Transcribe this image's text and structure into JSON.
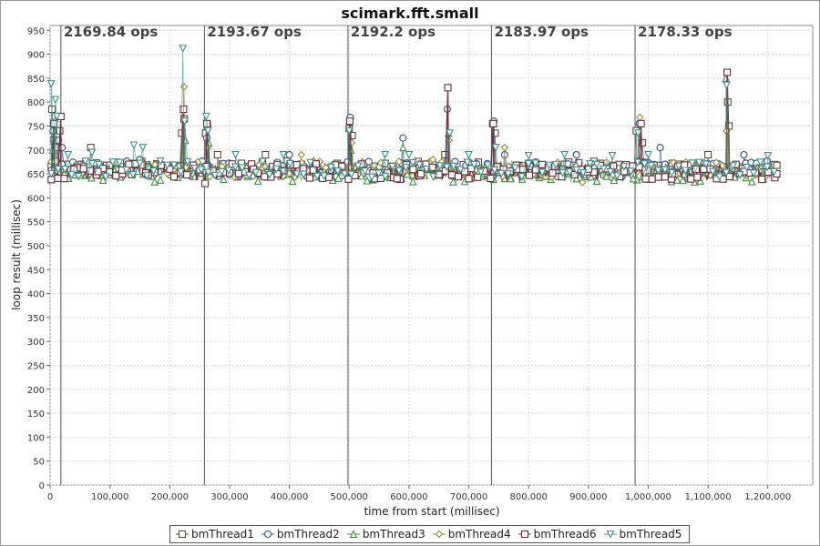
{
  "chart_data": {
    "type": "scatter",
    "title": "scimark.fft.small",
    "xlabel": "time from start (millisec)",
    "ylabel": "loop result (millisec)",
    "xlim": [
      0,
      1275000
    ],
    "ylim": [
      0,
      960
    ],
    "x_ticks": [
      0,
      100000,
      200000,
      300000,
      400000,
      500000,
      600000,
      700000,
      800000,
      900000,
      1000000,
      1100000,
      1200000
    ],
    "x_tick_labels": [
      "0",
      "100,000",
      "200,000",
      "300,000",
      "400,000",
      "500,000",
      "600,000",
      "700,000",
      "800,000",
      "900,000",
      "1,000,000",
      "1,100,000",
      "1,200,000"
    ],
    "y_ticks": [
      0,
      50,
      100,
      150,
      200,
      250,
      300,
      350,
      400,
      450,
      500,
      550,
      600,
      650,
      700,
      750,
      800,
      850,
      900,
      950
    ],
    "grid": true,
    "legend_position": "bottom",
    "iteration_markers": [
      {
        "x": 18000,
        "label": "2169.84 ops"
      },
      {
        "x": 258000,
        "label": "2193.67 ops"
      },
      {
        "x": 498000,
        "label": "2192.2 ops"
      },
      {
        "x": 738000,
        "label": "2183.97 ops"
      },
      {
        "x": 978000,
        "label": "2178.33 ops"
      }
    ],
    "series": [
      {
        "name": "bmThread1",
        "marker": "square",
        "color": "#5a4a3a",
        "points": [
          [
            3000,
            785
          ],
          [
            7000,
            720
          ],
          [
            12000,
            705
          ],
          [
            16000,
            740
          ],
          [
            30000,
            670
          ],
          [
            60000,
            672
          ],
          [
            68000,
            705
          ],
          [
            100000,
            668
          ],
          [
            140000,
            672
          ],
          [
            180000,
            670
          ],
          [
            220000,
            735
          ],
          [
            224000,
            765
          ],
          [
            260000,
            735
          ],
          [
            263000,
            750
          ],
          [
            280000,
            690
          ],
          [
            320000,
            672
          ],
          [
            360000,
            690
          ],
          [
            420000,
            670
          ],
          [
            480000,
            672
          ],
          [
            500000,
            745
          ],
          [
            505000,
            730
          ],
          [
            560000,
            672
          ],
          [
            620000,
            670
          ],
          [
            660000,
            690
          ],
          [
            700000,
            672
          ],
          [
            740000,
            755
          ],
          [
            744000,
            735
          ],
          [
            800000,
            672
          ],
          [
            860000,
            670
          ],
          [
            920000,
            672
          ],
          [
            980000,
            740
          ],
          [
            990000,
            715
          ],
          [
            1040000,
            672
          ],
          [
            1100000,
            690
          ],
          [
            1133000,
            800
          ],
          [
            1135000,
            750
          ],
          [
            1180000,
            670
          ],
          [
            1215000,
            668
          ]
        ]
      },
      {
        "name": "bmThread2",
        "marker": "circle",
        "color": "#2f4f8f",
        "points": [
          [
            5000,
            740
          ],
          [
            14000,
            720
          ],
          [
            20000,
            705
          ],
          [
            40000,
            648
          ],
          [
            80000,
            650
          ],
          [
            120000,
            645
          ],
          [
            150000,
            680
          ],
          [
            200000,
            648
          ],
          [
            240000,
            650
          ],
          [
            262000,
            725
          ],
          [
            300000,
            648
          ],
          [
            350000,
            650
          ],
          [
            400000,
            690
          ],
          [
            440000,
            648
          ],
          [
            502000,
            768
          ],
          [
            540000,
            650
          ],
          [
            590000,
            725
          ],
          [
            620000,
            648
          ],
          [
            664000,
            785
          ],
          [
            700000,
            650
          ],
          [
            742000,
            760
          ],
          [
            760000,
            690
          ],
          [
            820000,
            648
          ],
          [
            880000,
            690
          ],
          [
            950000,
            650
          ],
          [
            985000,
            755
          ],
          [
            1020000,
            705
          ],
          [
            1060000,
            648
          ],
          [
            1120000,
            648
          ],
          [
            1160000,
            690
          ],
          [
            1200000,
            650
          ]
        ]
      },
      {
        "name": "bmThread3",
        "marker": "triangle",
        "color": "#3f8f3f",
        "points": [
          [
            4000,
            700
          ],
          [
            22000,
            650
          ],
          [
            60000,
            648
          ],
          [
            110000,
            650
          ],
          [
            170000,
            645
          ],
          [
            226000,
            720
          ],
          [
            265000,
            715
          ],
          [
            330000,
            645
          ],
          [
            390000,
            648
          ],
          [
            450000,
            650
          ],
          [
            503000,
            700
          ],
          [
            560000,
            645
          ],
          [
            590000,
            705
          ],
          [
            650000,
            648
          ],
          [
            666000,
            735
          ],
          [
            720000,
            645
          ],
          [
            770000,
            640
          ],
          [
            830000,
            645
          ],
          [
            880000,
            640
          ],
          [
            930000,
            645
          ],
          [
            975000,
            640
          ],
          [
            1130000,
            850
          ],
          [
            1190000,
            645
          ]
        ]
      },
      {
        "name": "bmThread4",
        "marker": "diamond",
        "color": "#8f8f2f",
        "points": [
          [
            8000,
            760
          ],
          [
            24000,
            648
          ],
          [
            90000,
            650
          ],
          [
            224000,
            832
          ],
          [
            264000,
            705
          ],
          [
            340000,
            645
          ],
          [
            420000,
            690
          ],
          [
            504000,
            715
          ],
          [
            570000,
            645
          ],
          [
            640000,
            680
          ],
          [
            667000,
            720
          ],
          [
            760000,
            705
          ],
          [
            820000,
            648
          ],
          [
            890000,
            632
          ],
          [
            940000,
            648
          ],
          [
            986000,
            768
          ],
          [
            1040000,
            648
          ],
          [
            1131000,
            740
          ],
          [
            1180000,
            648
          ]
        ]
      },
      {
        "name": "bmThread6",
        "marker": "square",
        "color": "#6a2a3a",
        "points": [
          [
            6000,
            755
          ],
          [
            18000,
            770
          ],
          [
            40000,
            660
          ],
          [
            80000,
            655
          ],
          [
            120000,
            658
          ],
          [
            160000,
            652
          ],
          [
            200000,
            660
          ],
          [
            223000,
            785
          ],
          [
            259000,
            630
          ],
          [
            262000,
            755
          ],
          [
            300000,
            652
          ],
          [
            340000,
            660
          ],
          [
            380000,
            650
          ],
          [
            440000,
            658
          ],
          [
            501000,
            760
          ],
          [
            540000,
            652
          ],
          [
            580000,
            640
          ],
          [
            620000,
            650
          ],
          [
            665000,
            830
          ],
          [
            700000,
            640
          ],
          [
            741000,
            755
          ],
          [
            780000,
            660
          ],
          [
            840000,
            652
          ],
          [
            900000,
            660
          ],
          [
            960000,
            655
          ],
          [
            988000,
            755
          ],
          [
            1040000,
            650
          ],
          [
            1080000,
            660
          ],
          [
            1132000,
            862
          ],
          [
            1160000,
            655
          ],
          [
            1215000,
            650
          ]
        ]
      },
      {
        "name": "bmThread5",
        "marker": "triangle-down",
        "color": "#3f8f8f",
        "points": [
          [
            2000,
            838
          ],
          [
            9000,
            805
          ],
          [
            11000,
            770
          ],
          [
            30000,
            690
          ],
          [
            70000,
            695
          ],
          [
            140000,
            710
          ],
          [
            155000,
            705
          ],
          [
            222000,
            912
          ],
          [
            225000,
            760
          ],
          [
            261000,
            770
          ],
          [
            264000,
            740
          ],
          [
            310000,
            690
          ],
          [
            390000,
            690
          ],
          [
            500000,
            740
          ],
          [
            560000,
            690
          ],
          [
            600000,
            690
          ],
          [
            668000,
            735
          ],
          [
            700000,
            690
          ],
          [
            745000,
            705
          ],
          [
            800000,
            688
          ],
          [
            860000,
            690
          ],
          [
            940000,
            688
          ],
          [
            983000,
            735
          ],
          [
            1000000,
            690
          ],
          [
            1131000,
            835
          ],
          [
            1200000,
            688
          ]
        ]
      }
    ]
  }
}
